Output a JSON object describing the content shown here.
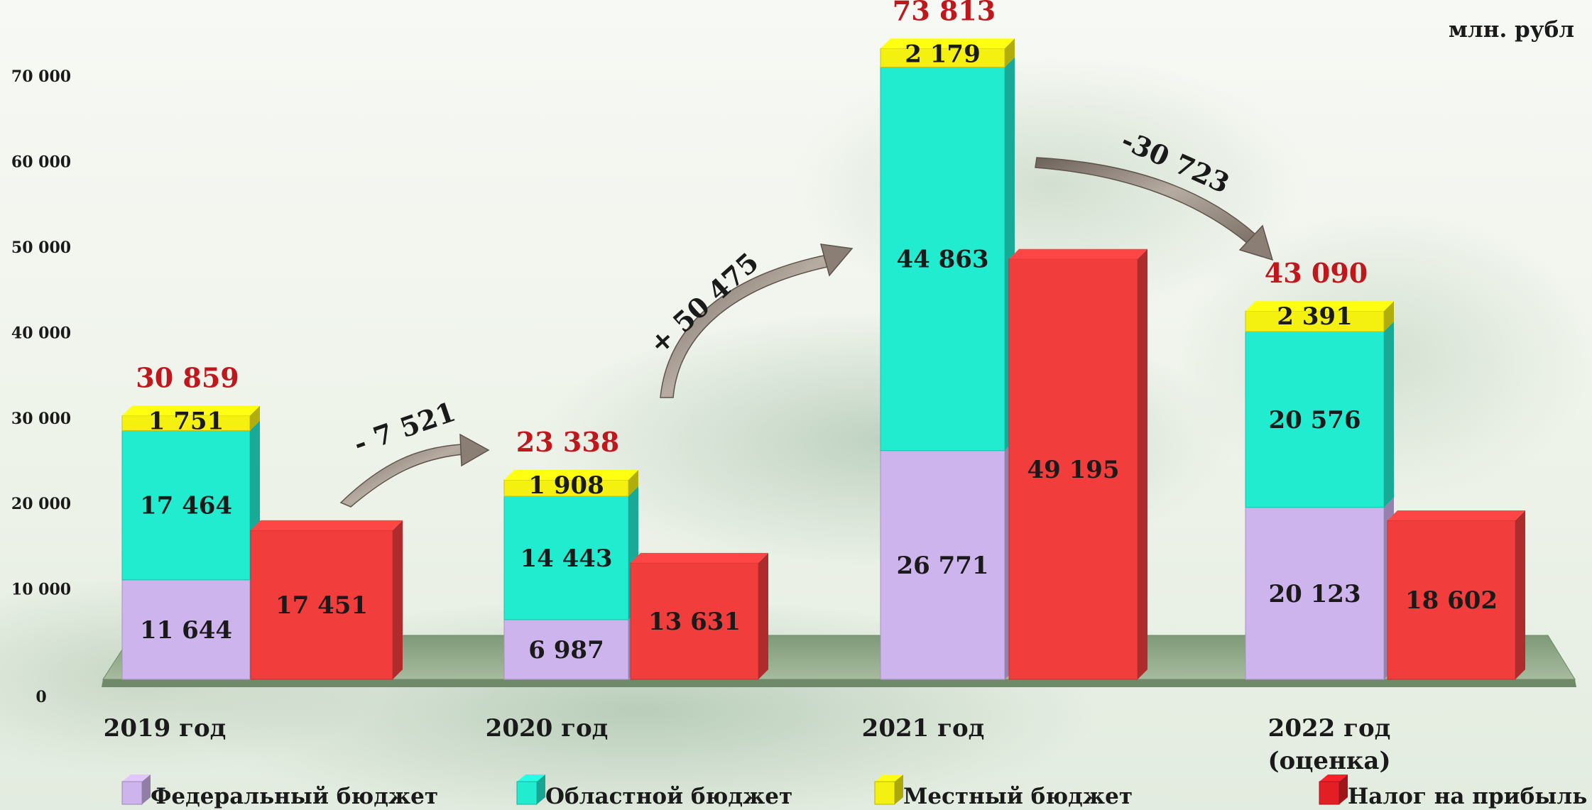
{
  "chart_data": {
    "type": "bar",
    "unit_label": "млн. рубл",
    "categories": [
      "2019 год",
      "2020 год",
      "2021 год",
      "2022 год (оценка)"
    ],
    "category_lines": [
      [
        "2019 год"
      ],
      [
        "2020 год"
      ],
      [
        "2021 год"
      ],
      [
        "2022 год",
        "(оценка)"
      ]
    ],
    "ylim": [
      0,
      80000
    ],
    "yticks": [
      "0",
      "10 000",
      "20 000",
      "30 000",
      "40 000",
      "50 000",
      "60 000",
      "70 000",
      "80 000"
    ],
    "stacked_series": [
      {
        "name": "Федеральный бюджет",
        "color": "#cdb4ec",
        "values": [
          11644,
          6987,
          26771,
          20123
        ],
        "labels": [
          "11 644",
          "6 987",
          "26 771",
          "20 123"
        ]
      },
      {
        "name": "Областной бюджет",
        "color": "#22ecd0",
        "values": [
          17464,
          14443,
          44863,
          20576
        ],
        "labels": [
          "17 464",
          "14 443",
          "44 863",
          "20 576"
        ]
      },
      {
        "name": "Местный бюджет",
        "color": "#f4f010",
        "values": [
          1751,
          1908,
          2179,
          2391
        ],
        "labels": [
          "1 751",
          "1 908",
          "2 179",
          "2 391"
        ]
      }
    ],
    "stack_totals": [
      "30 859",
      "23 338",
      "73 813",
      "43 090"
    ],
    "separate_series": {
      "name": "Налог на прибыль",
      "color": "#f23d3d",
      "values": [
        17451,
        13631,
        49195,
        18602
      ],
      "labels": [
        "17 451",
        "13 631",
        "49 195",
        "18 602"
      ]
    },
    "changes": [
      "- 7 521",
      "+ 50 475",
      "-30 723"
    ],
    "legend": [
      {
        "name": "Федеральный бюджет",
        "color": "#cdb4ec"
      },
      {
        "name": "Областной бюджет",
        "color": "#22ecd0"
      },
      {
        "name": "Местный бюджет",
        "color": "#f4f010"
      },
      {
        "name": "Налог на прибыль",
        "color": "#e31e24"
      }
    ],
    "grid": false,
    "legend_position": "bottom"
  }
}
